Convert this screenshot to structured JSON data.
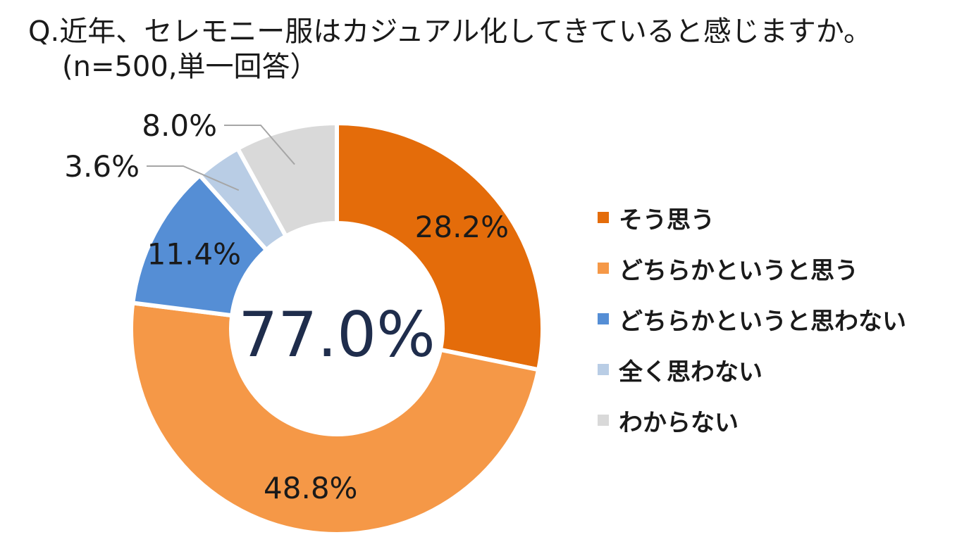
{
  "title": {
    "line1": "Q.近年、セレモニー服はカジュアル化してきていると感じますか。",
    "line2": "(n=500,単一回答）"
  },
  "chart_data": {
    "type": "donut",
    "center_label": "77.0%",
    "categories": [
      "そう思う",
      "どちらかというと思う",
      "どちらかというと思わない",
      "全く思わない",
      "わからない"
    ],
    "values": [
      28.2,
      48.8,
      11.4,
      3.6,
      8.0
    ],
    "data_labels": [
      "28.2%",
      "48.8%",
      "11.4%",
      "3.6%",
      "8.0%"
    ],
    "colors": [
      "#e46c0a",
      "#f59847",
      "#558ed5",
      "#b9cde5",
      "#d9d9d9"
    ],
    "legend_position": "right",
    "unit": "%"
  }
}
